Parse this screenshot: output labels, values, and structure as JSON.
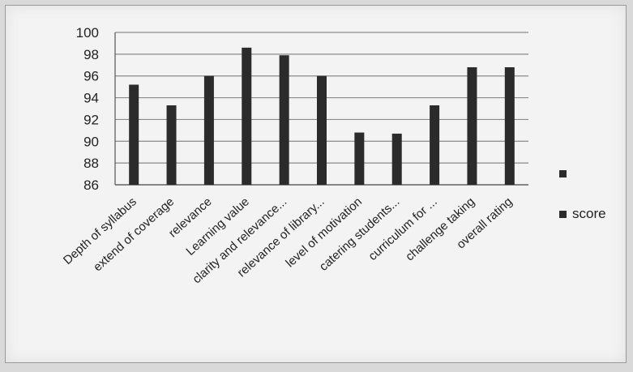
{
  "chart_data": {
    "type": "bar",
    "categories": [
      "Depth of syllabus",
      "extend of coverage",
      "relevance",
      "Learning value",
      "clarity and relevance...",
      "relevance of library...",
      "level of motivation",
      "catering students...",
      "curriculum for ...",
      "challenge taking",
      "overall rating"
    ],
    "series": [
      {
        "name": "score",
        "values": [
          95.2,
          93.3,
          96.0,
          98.6,
          97.9,
          96.0,
          90.8,
          90.7,
          93.3,
          96.8,
          96.8
        ]
      }
    ],
    "ylim": [
      86,
      100
    ],
    "yticks": [
      86,
      88,
      90,
      92,
      94,
      96,
      98,
      100
    ],
    "grid": true,
    "legend_position": "right",
    "legend_entries": [
      "",
      "score"
    ],
    "colors": {
      "bar": "#2b2b2b",
      "grid": "#8a8a8a",
      "axis": "#555555"
    }
  }
}
